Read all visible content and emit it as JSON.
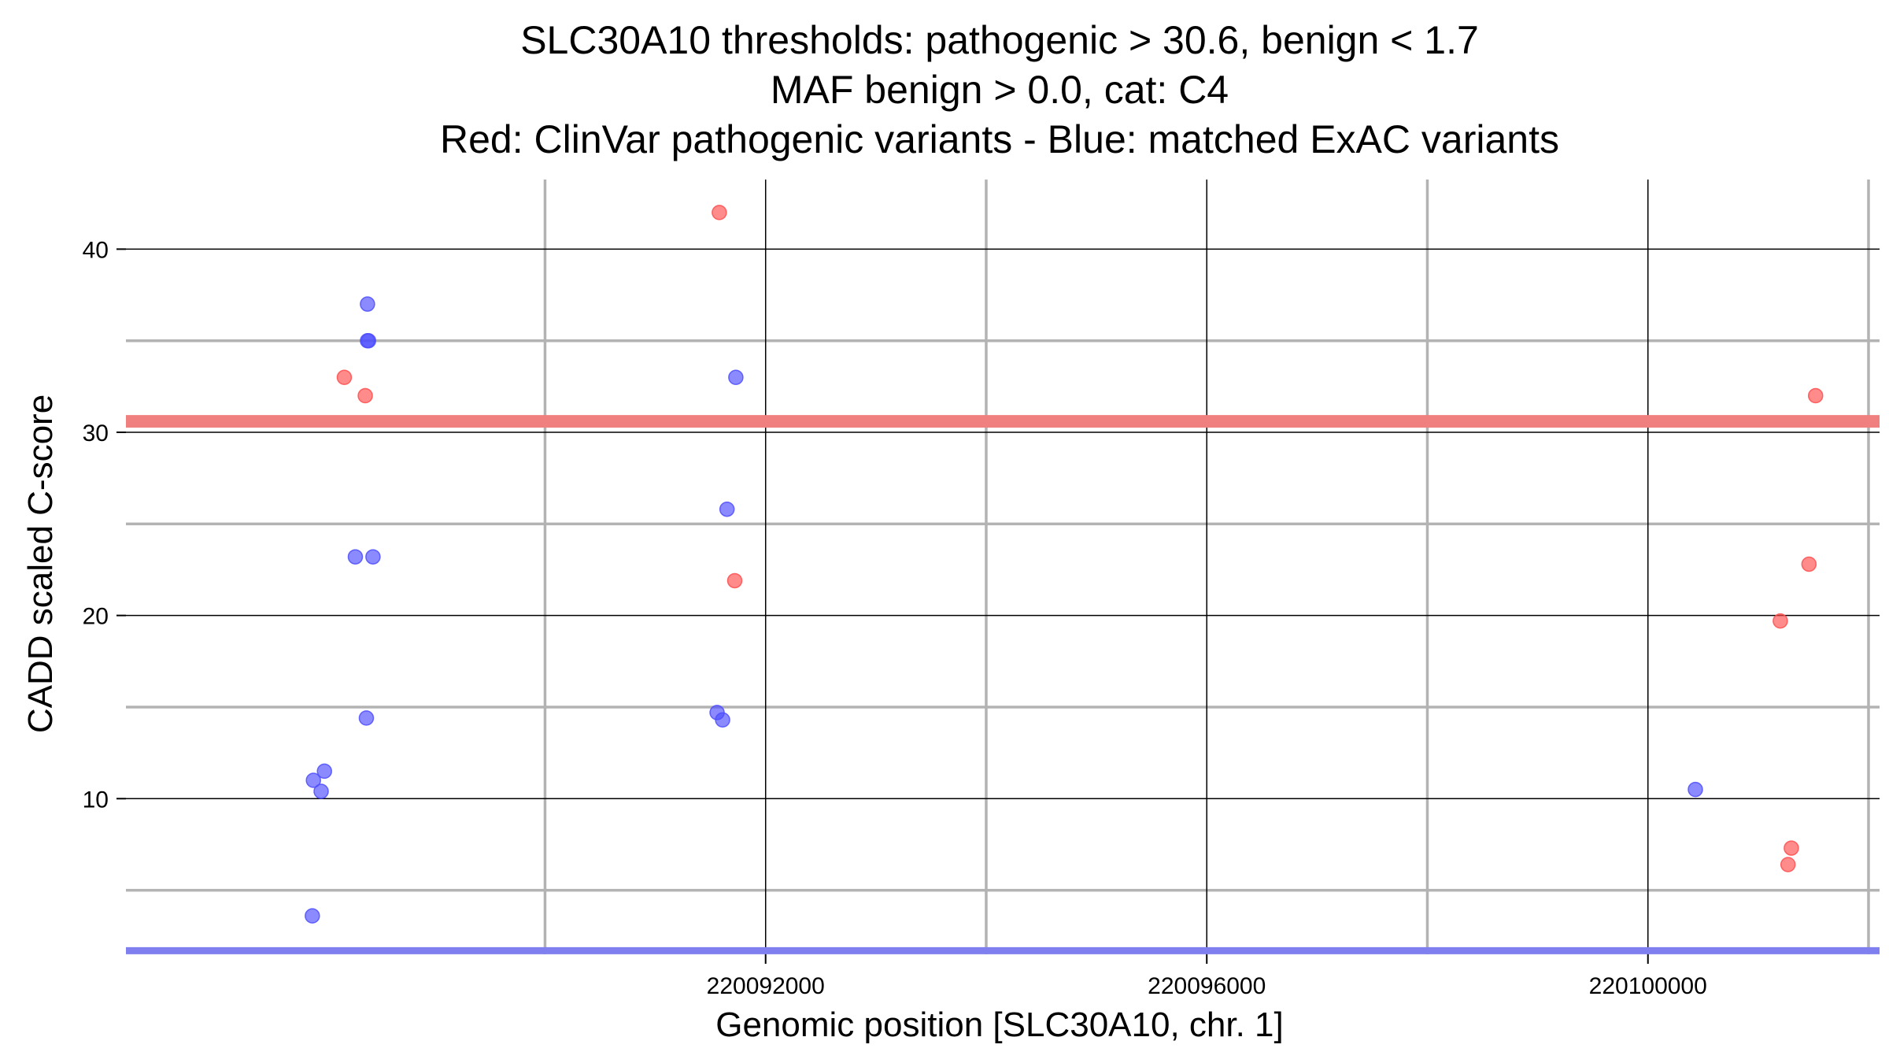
{
  "chart_data": {
    "type": "scatter",
    "title_lines": [
      "SLC30A10 thresholds: pathogenic > 30.6, benign < 1.7",
      "MAF benign > 0.0, cat: C4",
      "Red: ClinVar pathogenic variants - Blue: matched ExAC variants"
    ],
    "xlabel": "Genomic position [SLC30A10, chr. 1]",
    "ylabel": "CADD scaled C-score",
    "xlim": [
      220086200,
      220102100
    ],
    "ylim": [
      1.5,
      43.8
    ],
    "x_ticks": [
      220092000,
      220096000,
      220100000
    ],
    "x_minor": [
      220090000,
      220094000,
      220098000,
      220102000
    ],
    "y_ticks": [
      10,
      20,
      30,
      40
    ],
    "y_minor": [
      5,
      15,
      25,
      35
    ],
    "grid": true,
    "thresholds": [
      {
        "label": "pathogenic",
        "value": 30.6,
        "color": "#f08080"
      },
      {
        "label": "benign",
        "value": 1.7,
        "color": "#7f7ff0"
      }
    ],
    "series": [
      {
        "name": "ClinVar pathogenic variants",
        "color": "#ff4d4d",
        "points": [
          {
            "x": 220088180,
            "y": 33.0
          },
          {
            "x": 220088370,
            "y": 32.0
          },
          {
            "x": 220091580,
            "y": 42.0
          },
          {
            "x": 220091720,
            "y": 21.9
          },
          {
            "x": 220101200,
            "y": 19.7
          },
          {
            "x": 220101270,
            "y": 6.4
          },
          {
            "x": 220101300,
            "y": 7.3
          },
          {
            "x": 220101460,
            "y": 22.8
          },
          {
            "x": 220101520,
            "y": 32.0
          }
        ]
      },
      {
        "name": "matched ExAC variants",
        "color": "#4d4dff",
        "points": [
          {
            "x": 220087890,
            "y": 3.6
          },
          {
            "x": 220087900,
            "y": 11.0
          },
          {
            "x": 220087970,
            "y": 10.4
          },
          {
            "x": 220088000,
            "y": 11.5
          },
          {
            "x": 220088280,
            "y": 23.2
          },
          {
            "x": 220088380,
            "y": 14.4
          },
          {
            "x": 220088390,
            "y": 35.0
          },
          {
            "x": 220088400,
            "y": 35.0
          },
          {
            "x": 220088390,
            "y": 37.0
          },
          {
            "x": 220088440,
            "y": 23.2
          },
          {
            "x": 220091560,
            "y": 14.7
          },
          {
            "x": 220091610,
            "y": 14.3
          },
          {
            "x": 220091650,
            "y": 25.8
          },
          {
            "x": 220091730,
            "y": 33.0
          },
          {
            "x": 220100430,
            "y": 10.5
          }
        ]
      }
    ]
  }
}
